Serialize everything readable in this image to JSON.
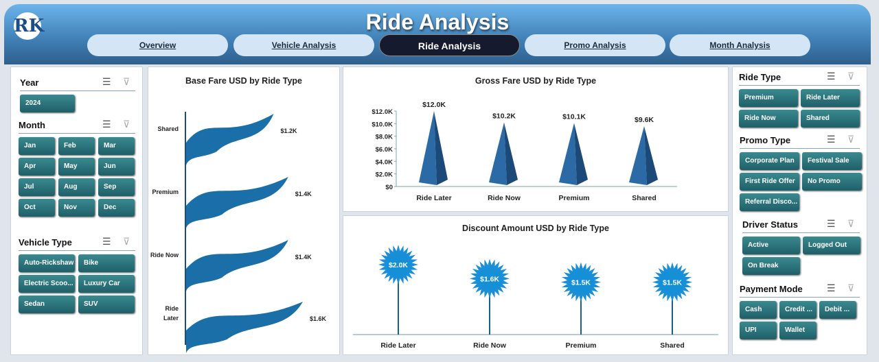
{
  "header": {
    "title": "Ride Analysis",
    "logo": "RK"
  },
  "tabs": [
    {
      "label": "Overview"
    },
    {
      "label": "Vehicle Analysis"
    },
    {
      "label": "Ride Analysis",
      "active": true
    },
    {
      "label": "Promo Analysis"
    },
    {
      "label": "Month Analysis"
    }
  ],
  "slicers": {
    "year": {
      "title": "Year",
      "items": [
        "2024"
      ]
    },
    "month": {
      "title": "Month",
      "items": [
        "Jan",
        "Feb",
        "Mar",
        "Apr",
        "May",
        "Jun",
        "Jul",
        "Aug",
        "Sep",
        "Oct",
        "Nov",
        "Dec"
      ]
    },
    "vehicle": {
      "title": "Vehicle Type",
      "items": [
        "Auto-Rickshaw",
        "Bike",
        "Electric Scoo...",
        "Luxury Car",
        "Sedan",
        "SUV"
      ]
    },
    "ride": {
      "title": "Ride Type",
      "items": [
        "Premium",
        "Ride Later",
        "Ride Now",
        "Shared"
      ]
    },
    "promo": {
      "title": "Promo Type",
      "items": [
        "Corporate Plan",
        "Festival Sale",
        "First Ride Offer",
        "No Promo",
        "Referral Disco..."
      ]
    },
    "driver": {
      "title": "Driver Status",
      "items": [
        "Active",
        "Logged Out",
        "On Break"
      ]
    },
    "payment": {
      "title": "Payment Mode",
      "items": [
        "Cash",
        "Credit ...",
        "Debit ...",
        "UPI",
        "Wallet"
      ]
    }
  },
  "icons": {
    "multiselect": "multi-select-icon",
    "clear": "clear-filter-icon"
  },
  "chart_data": [
    {
      "type": "bar",
      "title": "Base Fare USD by Ride Type",
      "categories": [
        "Shared",
        "Premium",
        "Ride Now",
        "Ride Later"
      ],
      "values": [
        1.2,
        1.4,
        1.4,
        1.6
      ],
      "labels": [
        "$1.2K",
        "$1.4K",
        "$1.4K",
        "$1.6K"
      ],
      "unit": "K USD",
      "orientation": "horizontal",
      "color": "#1a6fa8"
    },
    {
      "type": "bar",
      "title": "Gross Fare USD by Ride Type",
      "categories": [
        "Ride Later",
        "Ride Now",
        "Premium",
        "Shared"
      ],
      "values": [
        12.0,
        10.2,
        10.1,
        9.6
      ],
      "labels": [
        "$12.0K",
        "$10.2K",
        "$10.1K",
        "$9.6K"
      ],
      "ylim": [
        0,
        12
      ],
      "yticks": [
        "$0",
        "$2.0K",
        "$4.0K",
        "$6.0K",
        "$8.0K",
        "$10.0K",
        "$12.0K"
      ],
      "color": "#2c6aa5"
    },
    {
      "type": "bar",
      "title": "Discount Amount USD by Ride Type",
      "categories": [
        "Ride Later",
        "Ride Now",
        "Premium",
        "Shared"
      ],
      "values": [
        2.0,
        1.6,
        1.5,
        1.5
      ],
      "labels": [
        "$2.0K",
        "$1.6K",
        "$1.5K",
        "$1.5K"
      ],
      "color": "#1a8fd8"
    }
  ]
}
